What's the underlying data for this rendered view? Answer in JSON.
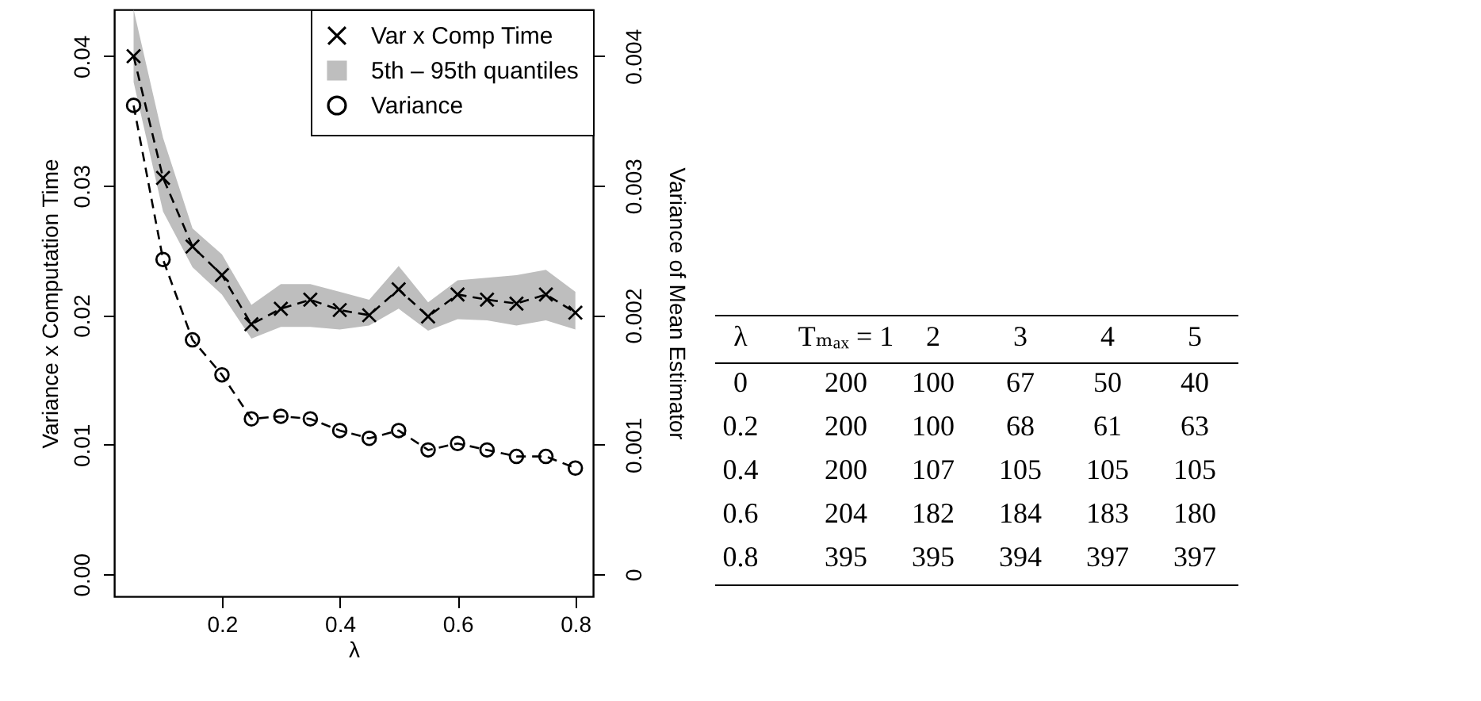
{
  "chart_data": [
    {
      "type": "line",
      "xlabel": "λ",
      "ylabel": "Variance x Computation Time",
      "y2label": "Variance of Mean Estimator",
      "x": [
        0.05,
        0.1,
        0.15,
        0.2,
        0.25,
        0.3,
        0.35,
        0.4,
        0.45,
        0.5,
        0.55,
        0.6,
        0.65,
        0.7,
        0.75,
        0.8
      ],
      "series": [
        {
          "name": "Var x Comp Time",
          "type": "line",
          "color": "#000000",
          "marker": "cross",
          "line_style": "dashed",
          "values": [
            0.04,
            0.0306,
            0.0253,
            0.0231,
            0.0193,
            0.0205,
            0.0212,
            0.0204,
            0.02,
            0.022,
            0.0199,
            0.0216,
            0.0212,
            0.0209,
            0.0216,
            0.0202
          ],
          "lower": [
            0.038,
            0.028,
            0.0237,
            0.0216,
            0.0182,
            0.0191,
            0.0191,
            0.0189,
            0.0192,
            0.0205,
            0.0188,
            0.0197,
            0.0196,
            0.0192,
            0.0196,
            0.0189
          ],
          "upper": [
            0.0436,
            0.0337,
            0.0267,
            0.0247,
            0.0208,
            0.0224,
            0.0224,
            0.0218,
            0.0212,
            0.0238,
            0.021,
            0.0227,
            0.0229,
            0.0231,
            0.0235,
            0.0218
          ]
        },
        {
          "name": "Variance",
          "type": "line",
          "color": "#000000",
          "marker": "circle",
          "line_style": "dashed",
          "axis": "y2",
          "values": [
            0.00362,
            0.00243,
            0.00181,
            0.00154,
            0.0012,
            0.00122,
            0.0012,
            0.00111,
            0.00105,
            0.00111,
            0.00096,
            0.00101,
            0.00096,
            0.00091,
            0.00091,
            0.00082
          ]
        }
      ],
      "annotations": [
        "5th – 95th quantiles"
      ],
      "xlim": [
        0.017,
        0.83
      ],
      "xticks": [
        0.2,
        0.4,
        0.6,
        0.8
      ],
      "ylim": [
        -0.0017,
        0.0436
      ],
      "yticks": [
        {
          "value": 0,
          "label": "0.00"
        },
        0.01,
        0.02,
        0.03,
        0.04
      ],
      "y2lim": [
        -0.00017,
        0.00436
      ],
      "y2ticks": [
        0,
        0.001,
        0.002,
        0.003,
        0.004
      ],
      "grid": false,
      "legend": "top right"
    },
    {
      "type": "heatmap",
      "data_labels": true,
      "ylabel": "λ",
      "categories": [
        "Tₘₐₓ = 1",
        "2",
        "3",
        "4",
        "5"
      ],
      "y_categories": [
        "0",
        "0.2",
        "0.4",
        "0.6",
        "0.8"
      ],
      "cells": [
        [
          200,
          100,
          67,
          50,
          40
        ],
        [
          200,
          100,
          68,
          61,
          63
        ],
        [
          200,
          107,
          105,
          105,
          105
        ],
        [
          204,
          182,
          184,
          183,
          180
        ],
        [
          395,
          395,
          394,
          397,
          397
        ]
      ]
    }
  ]
}
